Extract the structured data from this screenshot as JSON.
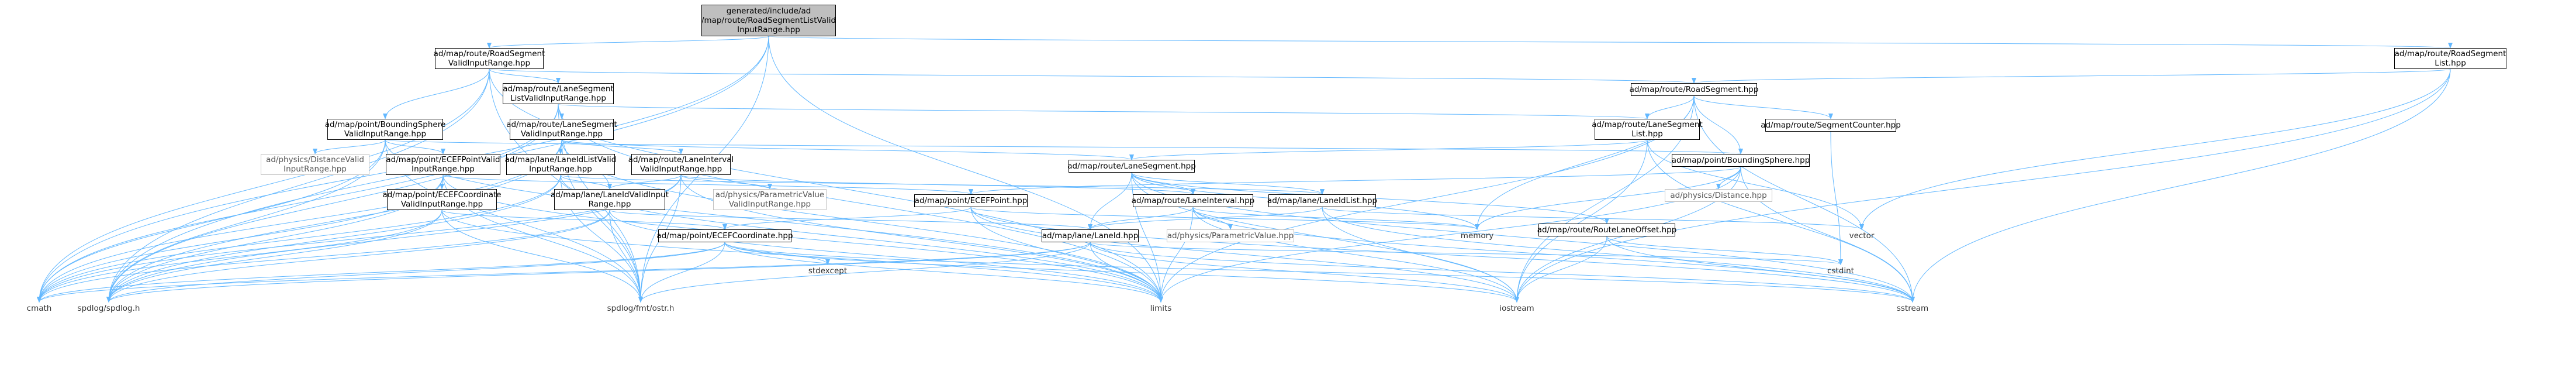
{
  "nodes": [
    {
      "id": "root",
      "lines": [
        "generated/include/ad",
        "/map/route/RoadSegmentListValid",
        "InputRange.hpp"
      ],
      "kind": "root"
    },
    {
      "id": "rsvr",
      "lines": [
        "ad/map/route/RoadSegment",
        "ValidInputRange.hpp"
      ],
      "kind": "box"
    },
    {
      "id": "rsl",
      "lines": [
        "ad/map/route/RoadSegment",
        "List.hpp"
      ],
      "kind": "box"
    },
    {
      "id": "lslvr",
      "lines": [
        "ad/map/route/LaneSegment",
        "ListValidInputRange.hpp"
      ],
      "kind": "box"
    },
    {
      "id": "rs",
      "lines": [
        "ad/map/route/RoadSegment.hpp"
      ],
      "kind": "box"
    },
    {
      "id": "bsvr",
      "lines": [
        "ad/map/point/BoundingSphere",
        "ValidInputRange.hpp"
      ],
      "kind": "box"
    },
    {
      "id": "lsvr",
      "lines": [
        "ad/map/route/LaneSegment",
        "ValidInputRange.hpp"
      ],
      "kind": "box"
    },
    {
      "id": "lsl",
      "lines": [
        "ad/map/route/LaneSegment",
        "List.hpp"
      ],
      "kind": "box"
    },
    {
      "id": "segcnt",
      "lines": [
        "ad/map/route/SegmentCounter.hpp"
      ],
      "kind": "box"
    },
    {
      "id": "dvr",
      "lines": [
        "ad/physics/DistanceValid",
        "InputRange.hpp"
      ],
      "kind": "gray"
    },
    {
      "id": "ecefpvr",
      "lines": [
        "ad/map/point/ECEFPointValid",
        "InputRange.hpp"
      ],
      "kind": "box"
    },
    {
      "id": "lidlvr",
      "lines": [
        "ad/map/lane/LaneIdListValid",
        "InputRange.hpp"
      ],
      "kind": "box"
    },
    {
      "id": "livr",
      "lines": [
        "ad/map/route/LaneInterval",
        "ValidInputRange.hpp"
      ],
      "kind": "box"
    },
    {
      "id": "bs",
      "lines": [
        "ad/map/point/BoundingSphere.hpp"
      ],
      "kind": "box"
    },
    {
      "id": "ls",
      "lines": [
        "ad/map/route/LaneSegment.hpp"
      ],
      "kind": "box"
    },
    {
      "id": "ecefcvr",
      "lines": [
        "ad/map/point/ECEFCoordinate",
        "ValidInputRange.hpp"
      ],
      "kind": "box"
    },
    {
      "id": "lidvr",
      "lines": [
        "ad/map/lane/LaneIdValidInput",
        "Range.hpp"
      ],
      "kind": "box"
    },
    {
      "id": "pvvr",
      "lines": [
        "ad/physics/ParametricValue",
        "ValidInputRange.hpp"
      ],
      "kind": "gray"
    },
    {
      "id": "dist",
      "lines": [
        "ad/physics/Distance.hpp"
      ],
      "kind": "gray"
    },
    {
      "id": "ecefp",
      "lines": [
        "ad/map/point/ECEFPoint.hpp"
      ],
      "kind": "box"
    },
    {
      "id": "li",
      "lines": [
        "ad/map/route/LaneInterval.hpp"
      ],
      "kind": "box"
    },
    {
      "id": "lidl",
      "lines": [
        "ad/map/lane/LaneIdList.hpp"
      ],
      "kind": "box"
    },
    {
      "id": "rlo",
      "lines": [
        "ad/map/route/RouteLaneOffset.hpp"
      ],
      "kind": "box"
    },
    {
      "id": "ecefc",
      "lines": [
        "ad/map/point/ECEFCoordinate.hpp"
      ],
      "kind": "box"
    },
    {
      "id": "lid",
      "lines": [
        "ad/map/lane/LaneId.hpp"
      ],
      "kind": "box"
    },
    {
      "id": "pv",
      "lines": [
        "ad/physics/ParametricValue.hpp"
      ],
      "kind": "gray"
    },
    {
      "id": "memory",
      "lines": [
        "memory"
      ],
      "kind": "plain"
    },
    {
      "id": "vector",
      "lines": [
        "vector"
      ],
      "kind": "plain"
    },
    {
      "id": "stdexcept",
      "lines": [
        "stdexcept"
      ],
      "kind": "plain"
    },
    {
      "id": "cmath",
      "lines": [
        "cmath"
      ],
      "kind": "plain"
    },
    {
      "id": "spdlog",
      "lines": [
        "spdlog/spdlog.h"
      ],
      "kind": "plain"
    },
    {
      "id": "fmtostr",
      "lines": [
        "spdlog/fmt/ostr.h"
      ],
      "kind": "plain"
    },
    {
      "id": "limits",
      "lines": [
        "limits"
      ],
      "kind": "plain"
    },
    {
      "id": "iostream",
      "lines": [
        "iostream"
      ],
      "kind": "plain"
    },
    {
      "id": "sstream",
      "lines": [
        "sstream"
      ],
      "kind": "plain"
    },
    {
      "id": "cstdint",
      "lines": [
        "cstdint"
      ],
      "kind": "plain"
    }
  ],
  "edges": [
    [
      "root",
      "rsvr"
    ],
    [
      "root",
      "rsl"
    ],
    [
      "root",
      "cmath"
    ],
    [
      "root",
      "spdlog"
    ],
    [
      "root",
      "fmtostr"
    ],
    [
      "root",
      "limits"
    ],
    [
      "rsvr",
      "lslvr"
    ],
    [
      "rsvr",
      "rs"
    ],
    [
      "rsvr",
      "bsvr"
    ],
    [
      "rsvr",
      "cmath"
    ],
    [
      "rsvr",
      "spdlog"
    ],
    [
      "rsvr",
      "fmtostr"
    ],
    [
      "rsvr",
      "limits"
    ],
    [
      "rsl",
      "rs"
    ],
    [
      "rsl",
      "vector"
    ],
    [
      "rsl",
      "iostream"
    ],
    [
      "rsl",
      "sstream"
    ],
    [
      "lslvr",
      "lsvr"
    ],
    [
      "lslvr",
      "lsl"
    ],
    [
      "lslvr",
      "cmath"
    ],
    [
      "lslvr",
      "spdlog"
    ],
    [
      "lslvr",
      "fmtostr"
    ],
    [
      "lslvr",
      "limits"
    ],
    [
      "rs",
      "lsl"
    ],
    [
      "rs",
      "bs"
    ],
    [
      "rs",
      "segcnt"
    ],
    [
      "rs",
      "limits"
    ],
    [
      "rs",
      "memory"
    ],
    [
      "rs",
      "iostream"
    ],
    [
      "rs",
      "sstream"
    ],
    [
      "bsvr",
      "dvr"
    ],
    [
      "bsvr",
      "ecefpvr"
    ],
    [
      "bsvr",
      "bs"
    ],
    [
      "bsvr",
      "cmath"
    ],
    [
      "bsvr",
      "spdlog"
    ],
    [
      "bsvr",
      "fmtostr"
    ],
    [
      "bsvr",
      "limits"
    ],
    [
      "lsvr",
      "lidlvr"
    ],
    [
      "lsvr",
      "livr"
    ],
    [
      "lsvr",
      "lidvr"
    ],
    [
      "lsvr",
      "ls"
    ],
    [
      "lsvr",
      "cmath"
    ],
    [
      "lsvr",
      "spdlog"
    ],
    [
      "lsvr",
      "fmtostr"
    ],
    [
      "lsvr",
      "limits"
    ],
    [
      "lsl",
      "ls"
    ],
    [
      "lsl",
      "vector"
    ],
    [
      "lsl",
      "iostream"
    ],
    [
      "lsl",
      "sstream"
    ],
    [
      "segcnt",
      "cstdint"
    ],
    [
      "ecefpvr",
      "ecefcvr"
    ],
    [
      "ecefpvr",
      "ecefp"
    ],
    [
      "ecefpvr",
      "cmath"
    ],
    [
      "ecefpvr",
      "spdlog"
    ],
    [
      "ecefpvr",
      "fmtostr"
    ],
    [
      "ecefpvr",
      "limits"
    ],
    [
      "lidlvr",
      "lidvr"
    ],
    [
      "lidlvr",
      "lidl"
    ],
    [
      "lidlvr",
      "cmath"
    ],
    [
      "lidlvr",
      "spdlog"
    ],
    [
      "lidlvr",
      "fmtostr"
    ],
    [
      "lidlvr",
      "limits"
    ],
    [
      "livr",
      "lidvr"
    ],
    [
      "livr",
      "pvvr"
    ],
    [
      "livr",
      "li"
    ],
    [
      "livr",
      "cmath"
    ],
    [
      "livr",
      "spdlog"
    ],
    [
      "livr",
      "fmtostr"
    ],
    [
      "livr",
      "limits"
    ],
    [
      "bs",
      "ecefp"
    ],
    [
      "bs",
      "dist"
    ],
    [
      "bs",
      "memory"
    ],
    [
      "bs",
      "iostream"
    ],
    [
      "bs",
      "sstream"
    ],
    [
      "bs",
      "limits"
    ],
    [
      "ls",
      "lid"
    ],
    [
      "ls",
      "li"
    ],
    [
      "ls",
      "lidl"
    ],
    [
      "ls",
      "rlo"
    ],
    [
      "ls",
      "memory"
    ],
    [
      "ls",
      "limits"
    ],
    [
      "ls",
      "iostream"
    ],
    [
      "ls",
      "sstream"
    ],
    [
      "ecefcvr",
      "ecefc"
    ],
    [
      "ecefcvr",
      "cmath"
    ],
    [
      "ecefcvr",
      "spdlog"
    ],
    [
      "ecefcvr",
      "fmtostr"
    ],
    [
      "ecefcvr",
      "limits"
    ],
    [
      "lidvr",
      "lid"
    ],
    [
      "lidvr",
      "cmath"
    ],
    [
      "lidvr",
      "spdlog"
    ],
    [
      "lidvr",
      "fmtostr"
    ],
    [
      "lidvr",
      "limits"
    ],
    [
      "ecefp",
      "ecefc"
    ],
    [
      "ecefp",
      "memory"
    ],
    [
      "ecefp",
      "limits"
    ],
    [
      "ecefp",
      "iostream"
    ],
    [
      "ecefp",
      "sstream"
    ],
    [
      "li",
      "lid"
    ],
    [
      "li",
      "pv"
    ],
    [
      "li",
      "memory"
    ],
    [
      "li",
      "limits"
    ],
    [
      "li",
      "iostream"
    ],
    [
      "li",
      "sstream"
    ],
    [
      "lidl",
      "lid"
    ],
    [
      "lidl",
      "vector"
    ],
    [
      "lidl",
      "iostream"
    ],
    [
      "lidl",
      "sstream"
    ],
    [
      "rlo",
      "cstdint"
    ],
    [
      "rlo",
      "iostream"
    ],
    [
      "rlo",
      "sstream"
    ],
    [
      "ecefc",
      "cmath"
    ],
    [
      "ecefc",
      "limits"
    ],
    [
      "ecefc",
      "iostream"
    ],
    [
      "ecefc",
      "sstream"
    ],
    [
      "ecefc",
      "stdexcept"
    ],
    [
      "ecefc",
      "spdlog"
    ],
    [
      "ecefc",
      "fmtostr"
    ],
    [
      "lid",
      "cmath"
    ],
    [
      "lid",
      "cstdint"
    ],
    [
      "lid",
      "iostream"
    ],
    [
      "lid",
      "limits"
    ],
    [
      "lid",
      "sstream"
    ],
    [
      "lid",
      "spdlog"
    ],
    [
      "lid",
      "fmtostr"
    ]
  ]
}
